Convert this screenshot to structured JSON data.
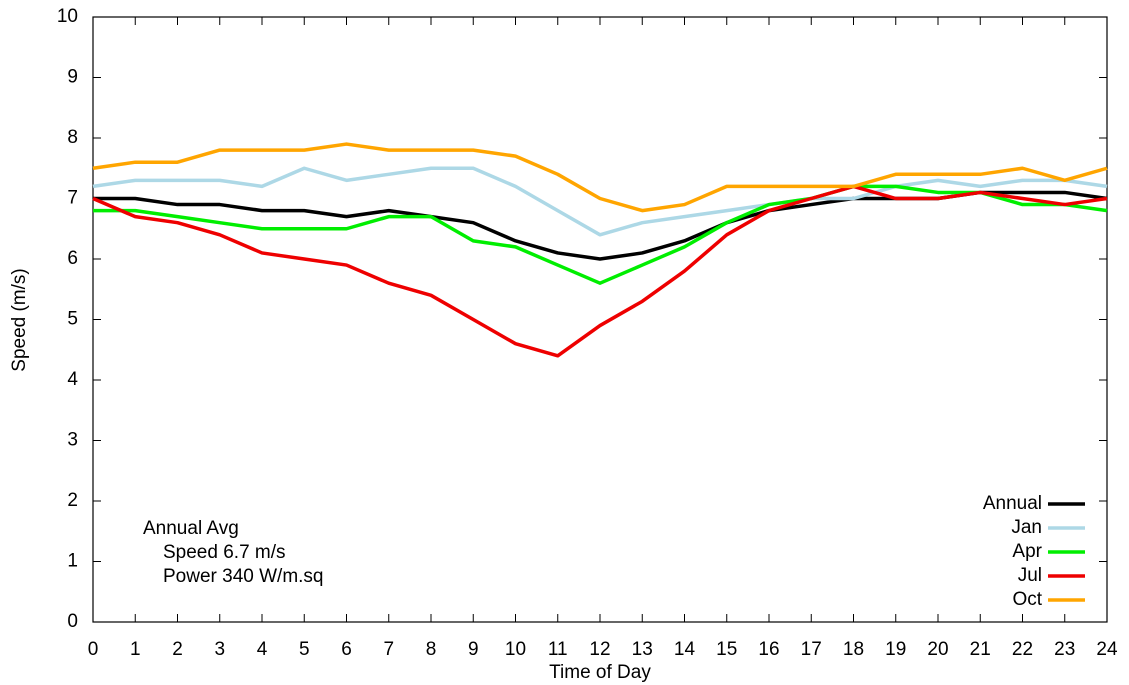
{
  "chart_data": {
    "type": "line",
    "x_label": "Time of Day",
    "y_label": "Speed (m/s)",
    "x": [
      0,
      1,
      2,
      3,
      4,
      5,
      6,
      7,
      8,
      9,
      10,
      11,
      12,
      13,
      14,
      15,
      16,
      17,
      18,
      19,
      20,
      21,
      22,
      23,
      24
    ],
    "series": [
      {
        "name": "Annual",
        "color": "#000000",
        "values": [
          7.0,
          7.0,
          6.9,
          6.9,
          6.8,
          6.8,
          6.7,
          6.8,
          6.7,
          6.6,
          6.3,
          6.1,
          6.0,
          6.1,
          6.3,
          6.6,
          6.8,
          6.9,
          7.0,
          7.0,
          7.0,
          7.1,
          7.1,
          7.1,
          7.0
        ]
      },
      {
        "name": "Jan",
        "color": "#add8e6",
        "values": [
          7.2,
          7.3,
          7.3,
          7.3,
          7.2,
          7.5,
          7.3,
          7.4,
          7.5,
          7.5,
          7.2,
          6.8,
          6.4,
          6.6,
          6.7,
          6.8,
          6.9,
          7.0,
          7.0,
          7.2,
          7.3,
          7.2,
          7.3,
          7.3,
          7.2
        ]
      },
      {
        "name": "Apr",
        "color": "#00ee00",
        "values": [
          6.8,
          6.8,
          6.7,
          6.6,
          6.5,
          6.5,
          6.5,
          6.7,
          6.7,
          6.3,
          6.2,
          5.9,
          5.6,
          5.9,
          6.2,
          6.6,
          6.9,
          7.0,
          7.2,
          7.2,
          7.1,
          7.1,
          6.9,
          6.9,
          6.8
        ]
      },
      {
        "name": "Jul",
        "color": "#ee0000",
        "values": [
          7.0,
          6.7,
          6.6,
          6.4,
          6.1,
          6.0,
          5.9,
          5.6,
          5.4,
          5.0,
          4.6,
          4.4,
          4.9,
          5.3,
          5.8,
          6.4,
          6.8,
          7.0,
          7.2,
          7.0,
          7.0,
          7.1,
          7.0,
          6.9,
          7.0
        ]
      },
      {
        "name": "Oct",
        "color": "#ffa500",
        "values": [
          7.5,
          7.6,
          7.6,
          7.8,
          7.8,
          7.8,
          7.9,
          7.8,
          7.8,
          7.8,
          7.7,
          7.4,
          7.0,
          6.8,
          6.9,
          7.2,
          7.2,
          7.2,
          7.2,
          7.4,
          7.4,
          7.4,
          7.5,
          7.3,
          7.5
        ]
      }
    ],
    "annotations": [
      "Annual Avg",
      "Speed 6.7 m/s",
      "Power 340 W/m.sq"
    ],
    "xlim": [
      0,
      24
    ],
    "xticks": [
      0,
      1,
      2,
      3,
      4,
      5,
      6,
      7,
      8,
      9,
      10,
      11,
      12,
      13,
      14,
      15,
      16,
      17,
      18,
      19,
      20,
      21,
      22,
      23,
      24
    ],
    "ylim": [
      0,
      10
    ],
    "yticks": [
      0,
      1,
      2,
      3,
      4,
      5,
      6,
      7,
      8,
      9,
      10
    ],
    "grid": false,
    "legend": "bottom-right"
  }
}
